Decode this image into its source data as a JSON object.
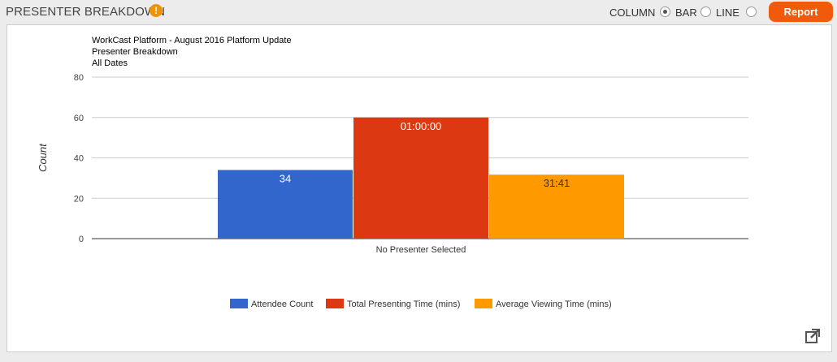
{
  "header": {
    "title": "PRESENTER BREAKDOWN",
    "alert_icon": "exclamation-circle-icon",
    "alert_glyph": "!",
    "chart_type_options": [
      {
        "label": "COLUMN",
        "checked": true
      },
      {
        "label": "BAR",
        "checked": false
      },
      {
        "label": "LINE",
        "checked": false
      }
    ],
    "report_button_label": "Report"
  },
  "colors": {
    "accent_orange": "#f05a0a",
    "alert_orange": "#f39200"
  },
  "chart_data": {
    "type": "bar",
    "title_lines": [
      "WorkCast Platform - August 2016 Platform Update",
      "Presenter Breakdown",
      "All Dates"
    ],
    "ylabel": "Count",
    "xlabel": "",
    "ylim": [
      0,
      80
    ],
    "yticks": [
      0,
      20,
      40,
      60,
      80
    ],
    "grid": true,
    "categories": [
      "No Presenter Selected"
    ],
    "series": [
      {
        "name": "Attendee Count",
        "values": [
          34
        ],
        "data_label": "34",
        "color": "#3366cc"
      },
      {
        "name": "Total Presenting Time (mins)",
        "values": [
          60
        ],
        "data_label": "01:00:00",
        "color": "#dc3912"
      },
      {
        "name": "Average Viewing Time (mins)",
        "values": [
          31.68
        ],
        "data_label": "31:41",
        "color": "#ff9900"
      }
    ],
    "legend_position": "bottom"
  },
  "footer": {
    "external_link_icon": "external-link-icon"
  }
}
